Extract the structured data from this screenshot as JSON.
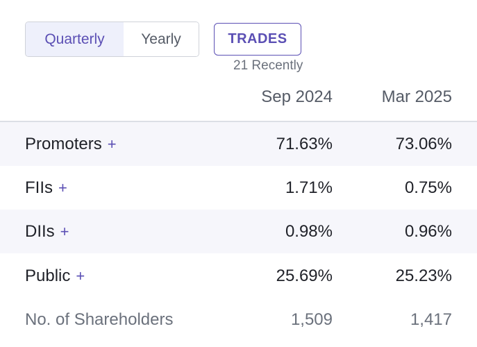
{
  "toggle": {
    "quarterly_label": "Quarterly",
    "yearly_label": "Yearly",
    "selected": "Quarterly"
  },
  "trades": {
    "label": "TRADES",
    "sub_label": "21 Recently"
  },
  "table": {
    "columns": [
      "Sep 2024",
      "Mar 2025"
    ],
    "plus_symbol": "+",
    "rows": [
      {
        "label": "Promoters",
        "values": [
          "71.63%",
          "73.06%"
        ]
      },
      {
        "label": "FIIs",
        "values": [
          "1.71%",
          "0.75%"
        ]
      },
      {
        "label": "DIIs",
        "values": [
          "0.98%",
          "0.96%"
        ]
      },
      {
        "label": "Public",
        "values": [
          "25.69%",
          "25.23%"
        ]
      },
      {
        "label": "No. of Shareholders",
        "values": [
          "1,509",
          "1,417"
        ]
      }
    ]
  },
  "colors": {
    "accent": "#5b4fb4",
    "row_shade": "#f6f6fb",
    "muted_text": "#6b717c"
  }
}
